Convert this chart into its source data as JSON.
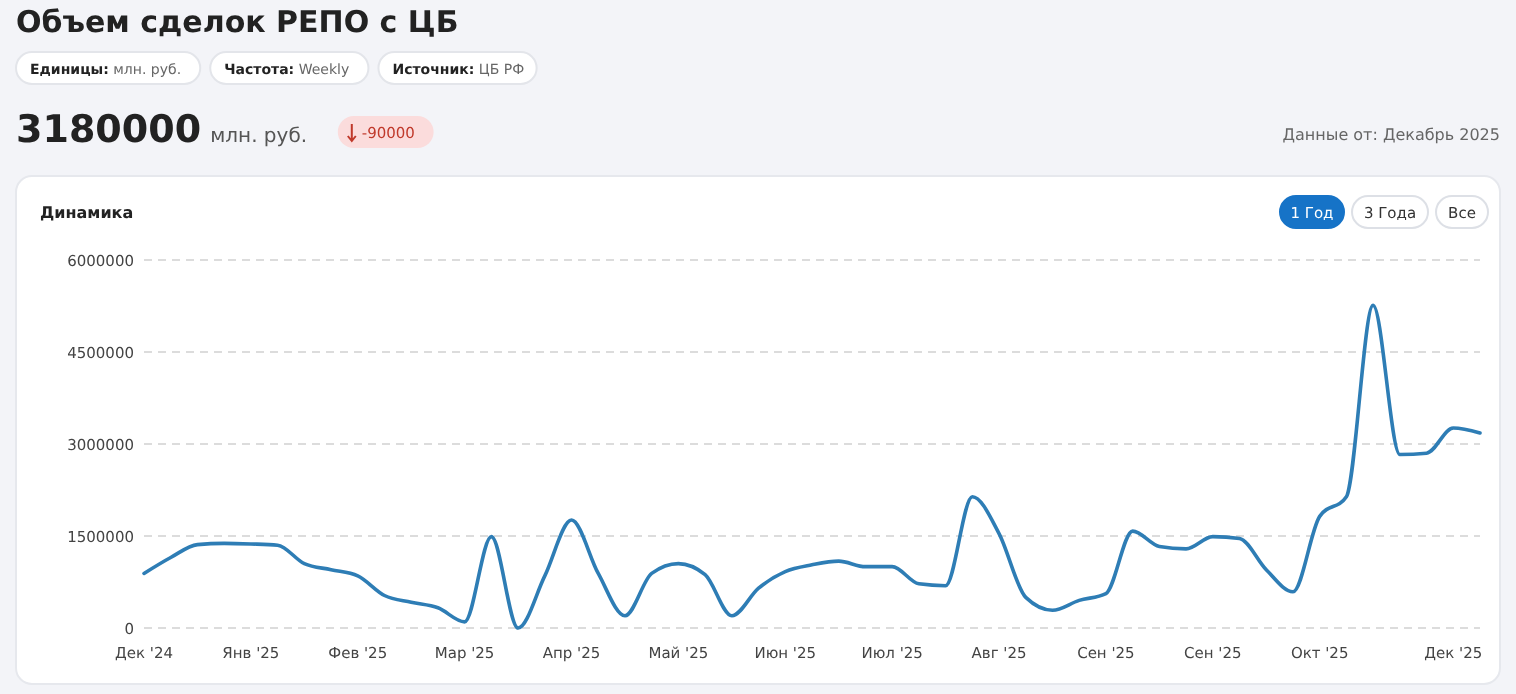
{
  "chart_data": {
    "type": "line",
    "title": "Объем сделок РЕПО с ЦБ",
    "annotations": [
      "Единицы: млн. руб.",
      "Частота: Weekly",
      "Источник: ЦБ РФ",
      "3180000",
      "млн. руб.",
      "-90000",
      "Данные от: Декабрь 2025",
      "Динамика",
      "1 Год",
      "3 Года",
      "Все"
    ],
    "categories": [
      "Дек '24",
      null,
      null,
      null,
      "Янв '25",
      null,
      null,
      null,
      "Фев '25",
      null,
      null,
      null,
      "Мар '25",
      null,
      null,
      null,
      "Апр '25",
      null,
      null,
      null,
      "Май '25",
      null,
      null,
      null,
      "Июн '25",
      null,
      null,
      null,
      "Июл '25",
      null,
      null,
      null,
      "Авг '25",
      null,
      null,
      null,
      "Сен '25",
      null,
      null,
      null,
      "Сен '25",
      null,
      null,
      null,
      "Окт '25",
      null,
      null,
      null,
      null,
      "Дек '25",
      null
    ],
    "series": [
      {
        "color": "#2e7db5",
        "values": [
          890000,
          1150000,
          1360000,
          1380000,
          1370000,
          1350000,
          1050000,
          950000,
          850000,
          530000,
          420000,
          330000,
          100000,
          1490000,
          0,
          850000,
          1760000,
          890000,
          200000,
          890000,
          1050000,
          870000,
          200000,
          650000,
          920000,
          1030000,
          1090000,
          1000000,
          1000000,
          720000,
          690000,
          2140000,
          1540000,
          500000,
          290000,
          450000,
          560000,
          1580000,
          1330000,
          1290000,
          1490000,
          1460000,
          950000,
          590000,
          1820000,
          2140000,
          5260000,
          2830000,
          2850000,
          3260000,
          3180000
        ]
      }
    ],
    "ylim": [
      0,
      6000000
    ],
    "yticks": [
      0,
      1500000,
      3000000,
      4500000,
      6000000
    ],
    "grid": "y",
    "marker": "none",
    "line_style": "solid"
  }
}
